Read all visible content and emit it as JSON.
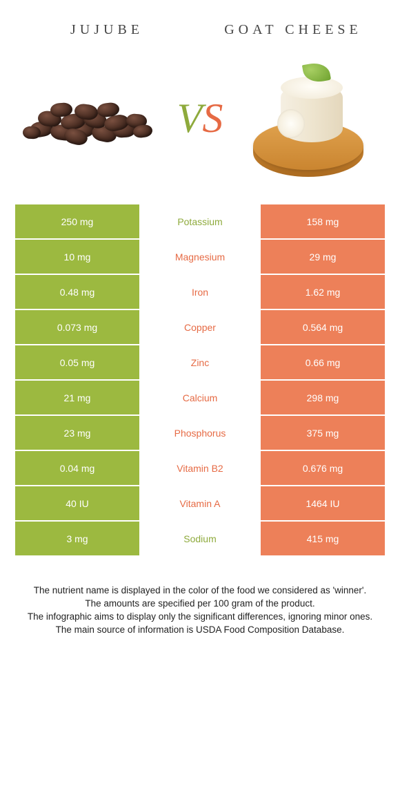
{
  "colors": {
    "left_bg": "#9cb940",
    "right_bg": "#ed8059",
    "left_text": "#8eaa3c",
    "right_text": "#e66a44"
  },
  "titles": {
    "left": "Jujube",
    "right": "Goat Cheese"
  },
  "vs": {
    "v": "V",
    "s": "S"
  },
  "rows": [
    {
      "left": "250 mg",
      "label": "Potassium",
      "right": "158 mg",
      "winner": "left"
    },
    {
      "left": "10 mg",
      "label": "Magnesium",
      "right": "29 mg",
      "winner": "right"
    },
    {
      "left": "0.48 mg",
      "label": "Iron",
      "right": "1.62 mg",
      "winner": "right"
    },
    {
      "left": "0.073 mg",
      "label": "Copper",
      "right": "0.564 mg",
      "winner": "right"
    },
    {
      "left": "0.05 mg",
      "label": "Zinc",
      "right": "0.66 mg",
      "winner": "right"
    },
    {
      "left": "21 mg",
      "label": "Calcium",
      "right": "298 mg",
      "winner": "right"
    },
    {
      "left": "23 mg",
      "label": "Phosphorus",
      "right": "375 mg",
      "winner": "right"
    },
    {
      "left": "0.04 mg",
      "label": "Vitamin B2",
      "right": "0.676 mg",
      "winner": "right"
    },
    {
      "left": "40 IU",
      "label": "Vitamin A",
      "right": "1464 IU",
      "winner": "right"
    },
    {
      "left": "3 mg",
      "label": "Sodium",
      "right": "415 mg",
      "winner": "left"
    }
  ],
  "footer": {
    "l1": "The nutrient name is displayed in the color of the food we considered as 'winner'.",
    "l2": "The amounts are specified per 100 gram of the product.",
    "l3": "The infographic aims to display only the significant differences, ignoring minor ones.",
    "l4": "The main source of information is USDA Food Composition Database."
  }
}
